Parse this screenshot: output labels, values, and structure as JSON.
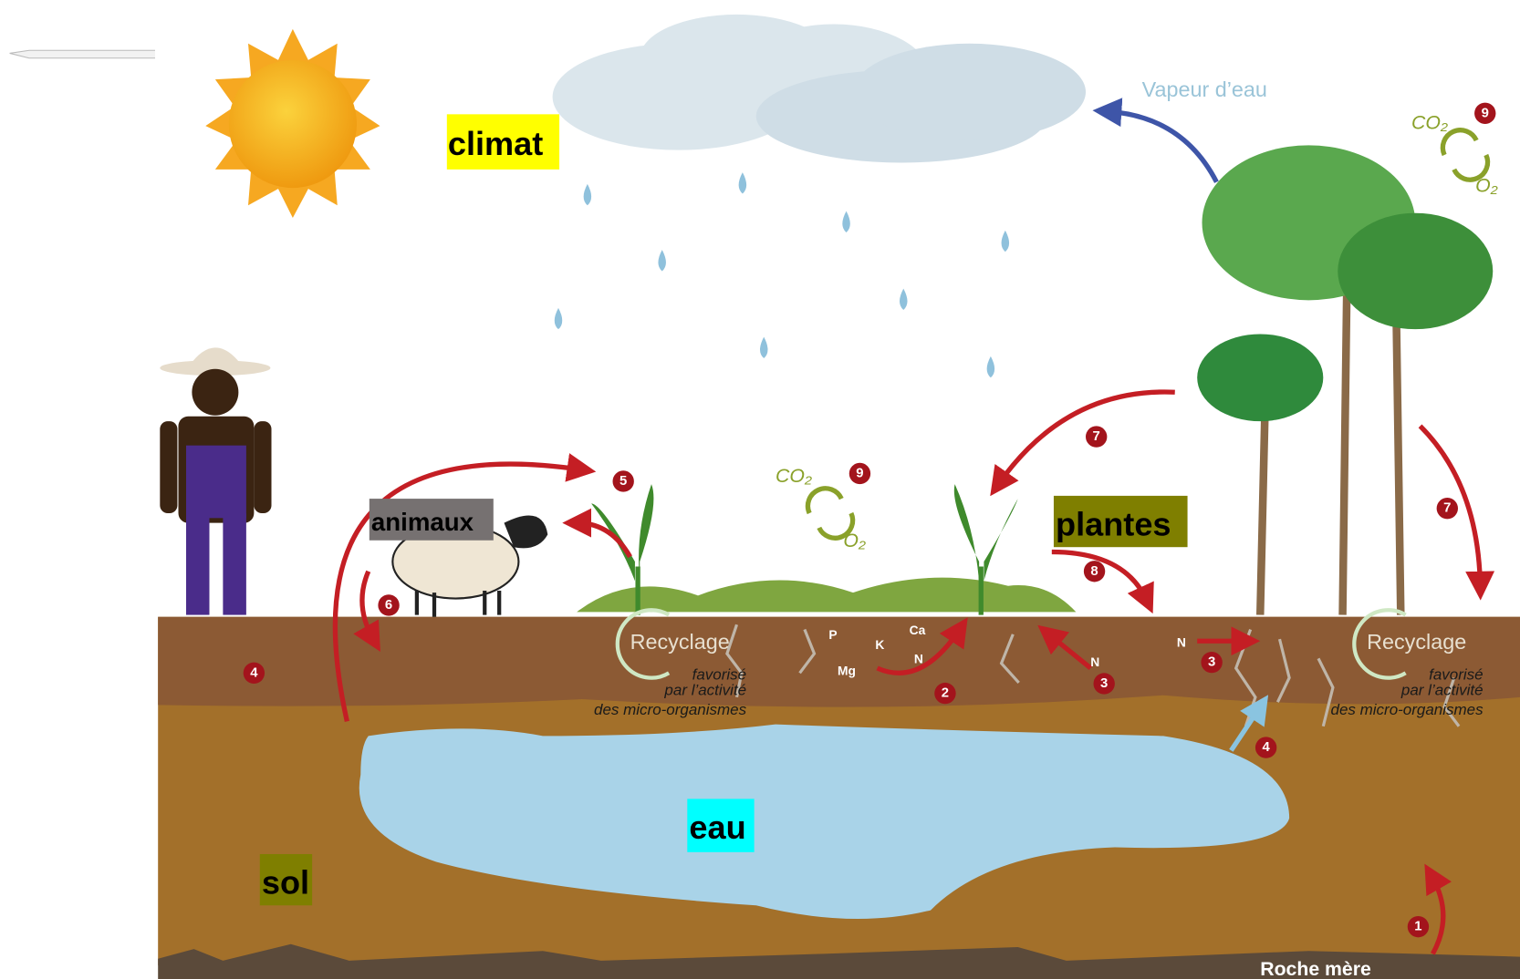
{
  "labels": {
    "climat": "climat",
    "animaux": "animaux",
    "plantes": "plantes",
    "eau": "eau",
    "sol": "sol"
  },
  "vapor": "Vapeur d’eau",
  "bedrock": "Roche mère",
  "recycling": [
    {
      "title": "Recyclage",
      "lines": [
        "favorisé",
        "par l’activité",
        "des micro-organismes"
      ]
    },
    {
      "title": "Recyclage",
      "lines": [
        "favorisé",
        "par l’activité",
        "des micro-organismes"
      ]
    }
  ],
  "nutrients": [
    "P",
    "K",
    "Ca",
    "Mg",
    "N",
    "N",
    "N"
  ],
  "gases": [
    {
      "co2": "CO₂",
      "o2": "O₂"
    },
    {
      "co2": "CO₂",
      "o2": "O₂"
    }
  ],
  "steps": [
    "1",
    "9",
    "9",
    "4",
    "5",
    "7",
    "7",
    "6",
    "8",
    "2",
    "3",
    "3",
    "4"
  ]
}
